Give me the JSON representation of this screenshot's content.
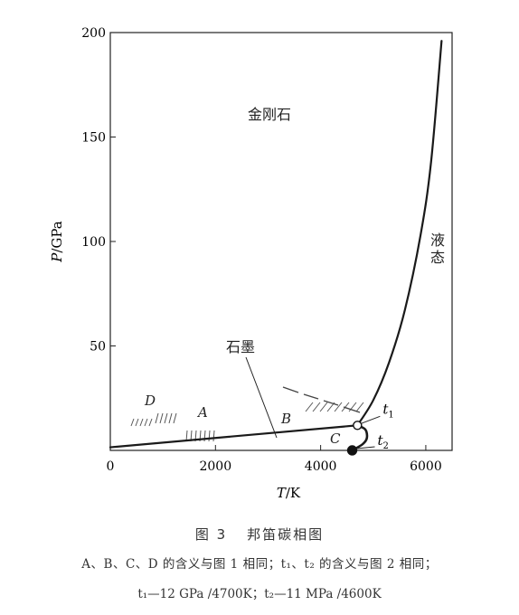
{
  "chart_data": {
    "type": "line",
    "xlabel": "T/K",
    "ylabel": "P/GPa",
    "xlim": [
      0,
      6500
    ],
    "ylim": [
      0,
      200
    ],
    "xticks": [
      0,
      2000,
      4000,
      6000
    ],
    "yticks": [
      50,
      100,
      150,
      200
    ],
    "grid": false,
    "series": [
      {
        "name": "graphite-diamond boundary",
        "points": [
          [
            0,
            1.5
          ],
          [
            4700,
            12
          ]
        ]
      },
      {
        "name": "diamond-liquid boundary",
        "points": [
          [
            4700,
            12
          ],
          [
            5000,
            24
          ],
          [
            5300,
            42
          ],
          [
            5600,
            67
          ],
          [
            5900,
            103
          ],
          [
            6100,
            138
          ],
          [
            6300,
            196
          ]
        ]
      },
      {
        "name": "graphite-liquid boundary",
        "points": [
          [
            4700,
            12
          ],
          [
            4850,
            10
          ],
          [
            4880,
            6
          ],
          [
            4800,
            3
          ],
          [
            4600,
            0.011
          ]
        ]
      }
    ],
    "regions": {
      "diamond": "金刚石",
      "liquid": "液态",
      "graphite": "石墨"
    },
    "markers": [
      {
        "label": "t",
        "sub": "1",
        "x": 4700,
        "y": 12,
        "style": "open"
      },
      {
        "label": "t",
        "sub": "2",
        "x": 4600,
        "y": 0.011,
        "style": "filled"
      }
    ],
    "zone_labels": [
      "A",
      "B",
      "C",
      "D"
    ]
  },
  "caption": {
    "title": "图 3",
    "title_text": "邦笛碳相图",
    "line2": "A、B、C、D 的含义与图 1 相同；t₁、t₂ 的含义与图 2 相同；",
    "line3": "t₁—12 GPa /4700K；t₂—11 MPa /4600K"
  }
}
